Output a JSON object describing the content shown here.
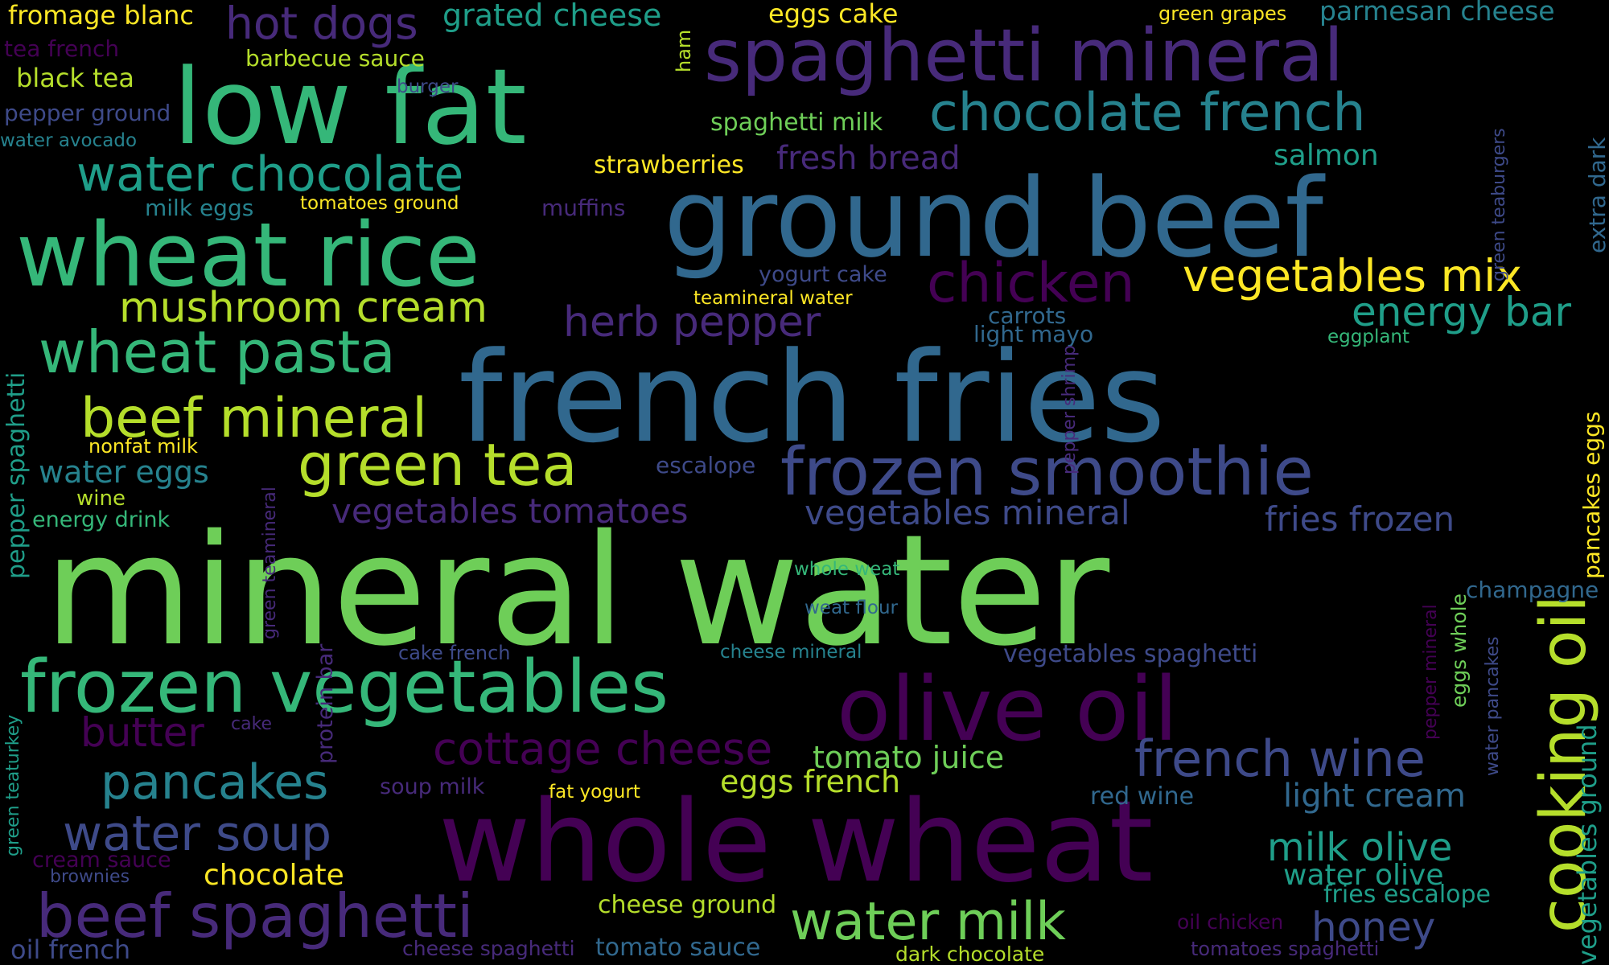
{
  "background": "#000000",
  "palette": {
    "p0": "#440154",
    "p1": "#472a7a",
    "p2": "#3e4a89",
    "p3": "#31688e",
    "p4": "#26828e",
    "p5": "#1f9e89",
    "p6": "#35b779",
    "p7": "#6ece58",
    "p8": "#b5de2b",
    "p9": "#fde725"
  },
  "words": [
    {
      "text": "mineral water",
      "color": "p7"
    },
    {
      "text": "french fries",
      "color": "p3"
    },
    {
      "text": "whole wheat",
      "color": "p0"
    },
    {
      "text": "ground beef",
      "color": "p3"
    },
    {
      "text": "low fat",
      "color": "p6"
    },
    {
      "text": "wheat rice",
      "color": "p6"
    },
    {
      "text": "olive oil",
      "color": "p0"
    },
    {
      "text": "spaghetti mineral",
      "color": "p1"
    },
    {
      "text": "frozen vegetables",
      "color": "p6"
    },
    {
      "text": "frozen smoothie",
      "color": "p2"
    },
    {
      "text": "cooking oil",
      "color": "p8"
    },
    {
      "text": "beef spaghetti",
      "color": "p1"
    },
    {
      "text": "chocolate french",
      "color": "p4"
    },
    {
      "text": "water chocolate",
      "color": "p5"
    },
    {
      "text": "wheat pasta",
      "color": "p6"
    },
    {
      "text": "green tea",
      "color": "p8"
    },
    {
      "text": "chicken",
      "color": "p0"
    },
    {
      "text": "beef mineral",
      "color": "p8"
    },
    {
      "text": "water milk",
      "color": "p7"
    },
    {
      "text": "french wine",
      "color": "p2"
    },
    {
      "text": "pancakes",
      "color": "p4"
    },
    {
      "text": "water soup",
      "color": "p2"
    },
    {
      "text": "vegetables mix",
      "color": "p9"
    },
    {
      "text": "mushroom cream",
      "color": "p8"
    },
    {
      "text": "cottage cheese",
      "color": "p0"
    },
    {
      "text": "milk olive",
      "color": "p5"
    },
    {
      "text": "energy bar",
      "color": "p5"
    },
    {
      "text": "herb pepper",
      "color": "p1"
    },
    {
      "text": "honey",
      "color": "p2"
    },
    {
      "text": "hot dogs",
      "color": "p1"
    },
    {
      "text": "butter",
      "color": "p0"
    },
    {
      "text": "vegetables ground",
      "color": "p5"
    },
    {
      "text": "grated cheese",
      "color": "p5"
    },
    {
      "text": "vegetables tomatoes",
      "color": "p1"
    },
    {
      "text": "vegetables mineral",
      "color": "p2"
    },
    {
      "text": "fries frozen",
      "color": "p2"
    },
    {
      "text": "light cream",
      "color": "p3"
    },
    {
      "text": "tomato juice",
      "color": "p7"
    },
    {
      "text": "eggs french",
      "color": "p8"
    },
    {
      "text": "fresh bread",
      "color": "p1"
    },
    {
      "text": "water eggs",
      "color": "p4"
    },
    {
      "text": "salmon",
      "color": "p5"
    },
    {
      "text": "chocolate",
      "color": "p9"
    },
    {
      "text": "water olive",
      "color": "p5"
    },
    {
      "text": "parmesan cheese",
      "color": "p4"
    },
    {
      "text": "fromage blanc",
      "color": "p9"
    },
    {
      "text": "black tea",
      "color": "p8"
    },
    {
      "text": "spaghetti milk",
      "color": "p7"
    },
    {
      "text": "strawberries",
      "color": "p9"
    },
    {
      "text": "fries escalope",
      "color": "p5"
    },
    {
      "text": "oil french",
      "color": "p2"
    },
    {
      "text": "tomato sauce",
      "color": "p3"
    },
    {
      "text": "cheese ground",
      "color": "p8"
    },
    {
      "text": "eggs cake",
      "color": "p9"
    },
    {
      "text": "pepper spaghetti",
      "color": "p5"
    },
    {
      "text": "pancakes eggs",
      "color": "p9"
    },
    {
      "text": "vegetables spaghetti",
      "color": "p2"
    },
    {
      "text": "red wine",
      "color": "p3"
    },
    {
      "text": "champagne",
      "color": "p3"
    },
    {
      "text": "extra dark",
      "color": "p3"
    },
    {
      "text": "barbecue sauce",
      "color": "p8"
    },
    {
      "text": "pepper ground",
      "color": "p2"
    },
    {
      "text": "milk eggs",
      "color": "p4"
    },
    {
      "text": "tea french",
      "color": "p0"
    },
    {
      "text": "muffins",
      "color": "p1"
    },
    {
      "text": "yogurt cake",
      "color": "p2"
    },
    {
      "text": "carrots",
      "color": "p3"
    },
    {
      "text": "light mayo",
      "color": "p3"
    },
    {
      "text": "escalope",
      "color": "p2"
    },
    {
      "text": "energy drink",
      "color": "p6"
    },
    {
      "text": "protein bar",
      "color": "p1"
    },
    {
      "text": "cake french",
      "color": "p2"
    },
    {
      "text": "soup milk",
      "color": "p1"
    },
    {
      "text": "cream sauce",
      "color": "p0"
    },
    {
      "text": "cheese spaghetti",
      "color": "p1"
    },
    {
      "text": "dark chocolate",
      "color": "p8"
    },
    {
      "text": "oil chicken",
      "color": "p0"
    },
    {
      "text": "tomatoes spaghetti",
      "color": "p1"
    },
    {
      "text": "wine",
      "color": "p8"
    },
    {
      "text": "nonfat milk",
      "color": "p9"
    },
    {
      "text": "water avocado",
      "color": "p4"
    },
    {
      "text": "burger",
      "color": "p2"
    },
    {
      "text": "ham",
      "color": "p8"
    },
    {
      "text": "green grapes",
      "color": "p9"
    },
    {
      "text": "tomatoes ground",
      "color": "p9"
    },
    {
      "text": "teamineral water",
      "color": "p9"
    },
    {
      "text": "whole weat",
      "color": "p6"
    },
    {
      "text": "weat flour",
      "color": "p3"
    },
    {
      "text": "cheese mineral",
      "color": "p4"
    },
    {
      "text": "fat yogurt",
      "color": "p9"
    },
    {
      "text": "cake",
      "color": "p1"
    },
    {
      "text": "brownies",
      "color": "p2"
    },
    {
      "text": "eggplant",
      "color": "p6"
    },
    {
      "text": "green teaburgers",
      "color": "p2"
    },
    {
      "text": "pepper shrimp",
      "color": "p1"
    },
    {
      "text": "green teamineral",
      "color": "p1"
    },
    {
      "text": "green teaturkey",
      "color": "p5"
    },
    {
      "text": "pepper mineral",
      "color": "p0"
    },
    {
      "text": "eggs whole",
      "color": "p7"
    },
    {
      "text": "water pancakes",
      "color": "p2"
    }
  ]
}
